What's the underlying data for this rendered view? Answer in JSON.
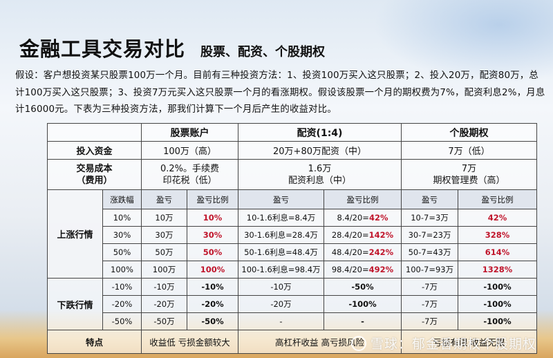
{
  "title": "金融工具交易对比",
  "subtitle": "股票、配资、个股期权",
  "intro": "假设：客户想投资某只股票100万一个月。目前有三种投资方法：1、投资100万买入这只股票；2、投入20万，配资80万，总计100万买入这只股票；3、投资7万元买入这只股票一个月的看涨期权。假设该股票一个月的期权费为7%，配资利息2%，月息计16000元。下表为三种投资方法，那我们计算下一个月后产生的收益对比。",
  "table": {
    "headers": [
      "股票账户",
      "配资(1:4)",
      "个股期权"
    ],
    "invest": {
      "label": "投入资金",
      "stock": "100万（高）",
      "margin": "20万+80万配资（中）",
      "option": "7万（低）"
    },
    "cost": {
      "label1": "交易成本",
      "label2": "（费用）",
      "stock1": "0.2%。手续费",
      "stock2": "印花税（低）",
      "margin1": "1.6万",
      "margin2": "配资利息（中）",
      "option1": "7万",
      "option2": "期权管理费（高）"
    },
    "sub": [
      "涨跌幅",
      "盈亏",
      "盈亏比例",
      "盈亏",
      "盈亏比例",
      "盈亏",
      "盈亏比例"
    ],
    "up_label": "上涨行情",
    "up_rows": [
      [
        "10%",
        "10万",
        "10%",
        "10-1.6利息=8.4万",
        "8.4/20=",
        "42%",
        "10-7=3万",
        "42%"
      ],
      [
        "30%",
        "30万",
        "30%",
        "30-1.6利息=28.4万",
        "28.4/20=",
        "142%",
        "30-7=23万",
        "328%"
      ],
      [
        "50%",
        "50万",
        "50%",
        "50-1.6利息=48.4万",
        "48.4/20=",
        "242%",
        "50-7=43万",
        "614%"
      ],
      [
        "100%",
        "100万",
        "100%",
        "100-1.6利息=98.4万",
        "98.4/20=",
        "492%",
        "100-7=93万",
        "1328%"
      ]
    ],
    "down_label": "下跌行情",
    "down_rows": [
      [
        "-10%",
        "-10万",
        "-10%",
        "-10万",
        "-50%",
        "-7万",
        "-100%"
      ],
      [
        "-20%",
        "-20万",
        "-20%",
        "-20万",
        "-100%",
        "-7万",
        "-100%"
      ],
      [
        "-50%",
        "-50万",
        "-50%",
        "-",
        "-",
        "-7万",
        "-100%"
      ]
    ],
    "feature": {
      "label": "特点",
      "stock": "收益低 亏损金额较大",
      "margin": "高杠杆收益 高亏损风险",
      "option": "亏损有限 收益无限"
    }
  },
  "watermark": "雪球：郁金香期权个股期权"
}
